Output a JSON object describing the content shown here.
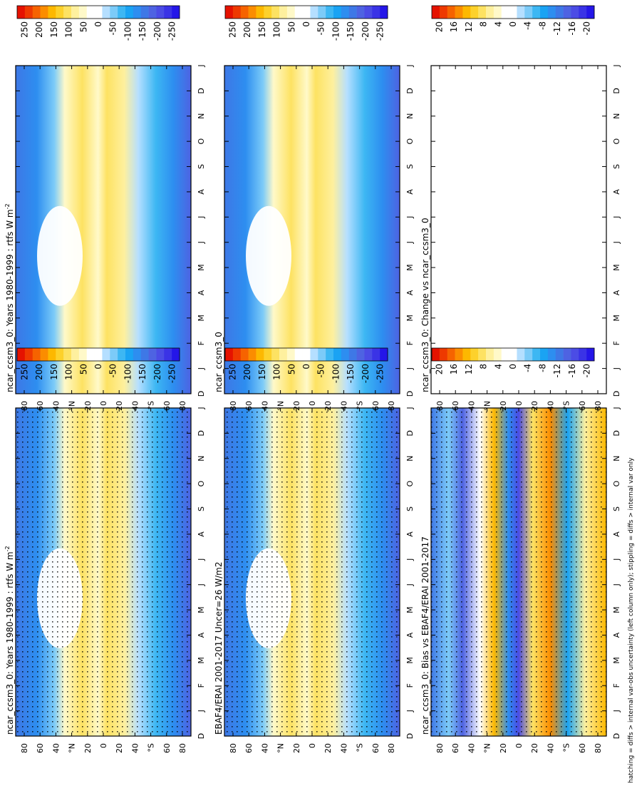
{
  "figure": {
    "footnote": "hatching = diffs > internal var-obs uncertainty (left column only); stippling = diffs > internal var only"
  },
  "months": [
    "D",
    "J",
    "F",
    "M",
    "A",
    "M",
    "J",
    "J",
    "A",
    "S",
    "O",
    "N",
    "D",
    "J"
  ],
  "lat_ticks": [
    "80",
    "60",
    "40",
    "°N",
    "20",
    "0",
    "20",
    "40",
    "°S",
    "60",
    "80"
  ],
  "cb_flux": {
    "labels": [
      "250",
      "200",
      "150",
      "100",
      "50",
      "0",
      "-50",
      "-100",
      "-150",
      "-200",
      "-250"
    ],
    "colors": [
      "#e51200",
      "#ee3900",
      "#f66300",
      "#fb8d00",
      "#fdb800",
      "#fdd12b",
      "#fde262",
      "#fef09e",
      "#fff9c9",
      "#ffffff",
      "#ffffff",
      "#b5dfff",
      "#7ccbf8",
      "#3db7f3",
      "#1aa3f3",
      "#2d8ef0",
      "#3e78e6",
      "#4e63e2",
      "#4b4ce5",
      "#3a33e6",
      "#2416e8"
    ]
  },
  "cb_diff": {
    "labels": [
      "20",
      "16",
      "12",
      "8",
      "4",
      "0",
      "-4",
      "-8",
      "-12",
      "-16",
      "-20"
    ],
    "colors": [
      "#e51200",
      "#ee3900",
      "#f66300",
      "#fb8d00",
      "#fdb800",
      "#fdd12b",
      "#fde262",
      "#fef09e",
      "#fff9c9",
      "#ffffff",
      "#ffffff",
      "#b5dfff",
      "#7ccbf8",
      "#3db7f3",
      "#1aa3f3",
      "#2d8ef0",
      "#3e78e6",
      "#4e63e2",
      "#4b4ce5",
      "#3a33e6",
      "#2416e8"
    ]
  },
  "panels": [
    {
      "id": "p_a",
      "title": "ncar_ccsm3_0: Years 1980-1999 : rtfs W m",
      "sup": "-2",
      "kind": "clim",
      "stipple": true
    },
    {
      "id": "p_b",
      "title": "ncar_ccsm3_0: Years 1980-1999 : rtfs W m",
      "sup": "-2",
      "kind": "clim",
      "stipple": false
    },
    {
      "id": "p_c",
      "title": "EBAF4/ERAI 2001-2017 Uncer=26 W/m2",
      "sup": "",
      "kind": "obs",
      "stipple": true
    },
    {
      "id": "p_d",
      "title": "ncar_ccsm3_0",
      "sup": "",
      "kind": "clim",
      "stipple": false
    },
    {
      "id": "p_e",
      "title": "ncar_ccsm3_0: Bias vs EBAF4/ERAI 2001-2017",
      "sup": "",
      "kind": "bias",
      "stipple": true
    },
    {
      "id": "p_f",
      "title": "ncar_ccsm3_0: Change vs ncar_ccsm3_0",
      "sup": "",
      "kind": "empty",
      "stipple": false
    }
  ],
  "chart_data": [
    {
      "type": "heatmap",
      "panel": "ncar_ccsm3_0: Years 1980-1999 : rtfs W m-2",
      "variable": "rtfs",
      "units": "W m-2",
      "x": "month (Dec-Jan)",
      "y": "latitude 90N-90S",
      "zlim": [
        -250,
        250
      ],
      "zonal_profile_lat": [
        -90,
        -75,
        -60,
        -45,
        -30,
        -15,
        0,
        15,
        30,
        45,
        60,
        75,
        90
      ],
      "zonal_profile_wm2": [
        -180,
        -160,
        -120,
        -60,
        20,
        40,
        5,
        40,
        10,
        -50,
        -130,
        -170,
        -190
      ]
    },
    {
      "type": "heatmap",
      "panel": "ncar_ccsm3_0: Years 1980-1999 : rtfs W m-2 (repeat)",
      "variable": "rtfs",
      "units": "W m-2",
      "zlim": [
        -250,
        250
      ]
    },
    {
      "type": "heatmap",
      "panel": "EBAF4/ERAI 2001-2017 Uncer=26 W/m2",
      "variable": "rtfs",
      "units": "W m-2",
      "zlim": [
        -250,
        250
      ],
      "uncertainty_wm2": 26
    },
    {
      "type": "heatmap",
      "panel": "ncar_ccsm3_0",
      "variable": "rtfs",
      "units": "W m-2",
      "zlim": [
        -250,
        250
      ]
    },
    {
      "type": "heatmap",
      "panel": "ncar_ccsm3_0: Bias vs EBAF4/ERAI 2001-2017",
      "variable": "rtfs bias",
      "units": "W m-2",
      "zlim": [
        -20,
        20
      ]
    },
    {
      "type": "heatmap",
      "panel": "ncar_ccsm3_0: Change vs ncar_ccsm3_0",
      "variable": "rtfs change",
      "units": "W m-2",
      "zlim": [
        -20,
        20
      ],
      "note": "blank (no change)"
    }
  ]
}
